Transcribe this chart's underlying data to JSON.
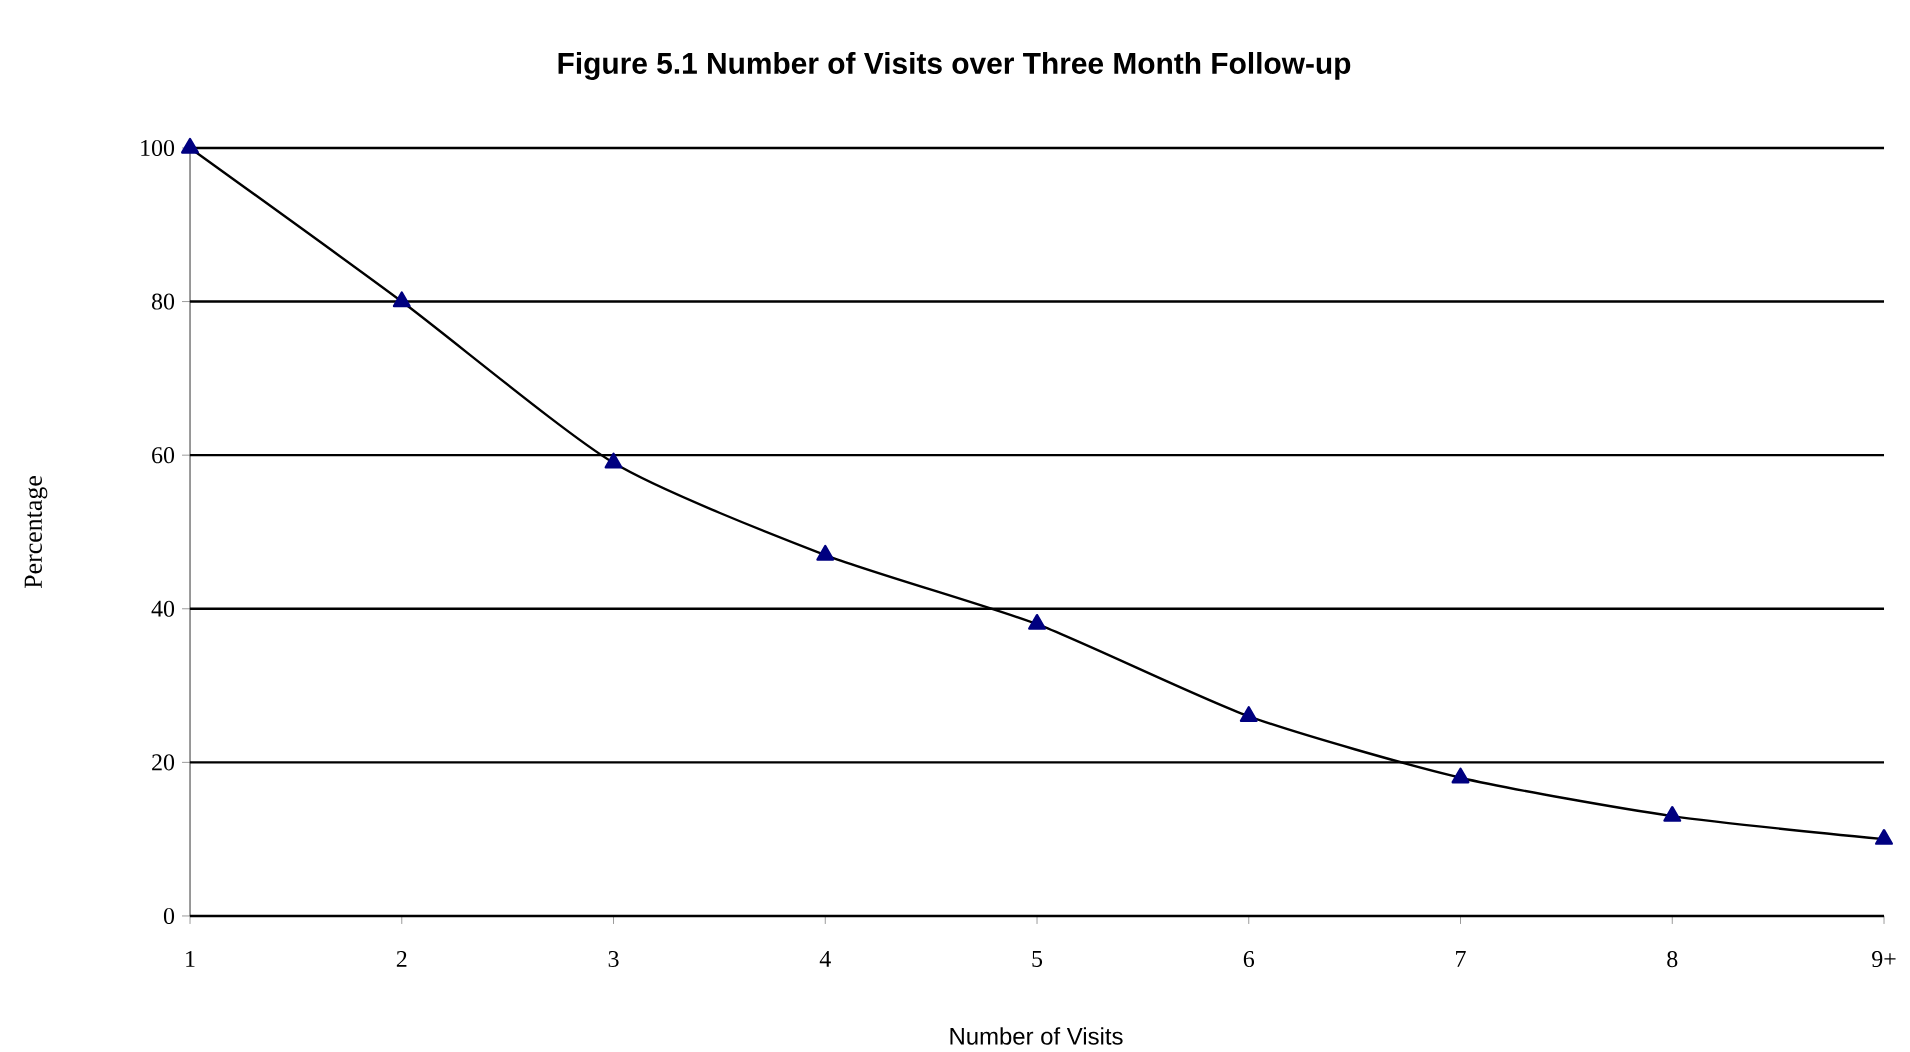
{
  "chart_data": {
    "type": "line",
    "title": "Figure 5.1 Number of Visits over Three Month Follow-up",
    "xlabel": "Number of Visits",
    "ylabel": "Percentage",
    "categories": [
      "1",
      "2",
      "3",
      "4",
      "5",
      "6",
      "7",
      "8",
      "9+"
    ],
    "series": [
      {
        "color": "#000080",
        "values": [
          100,
          80,
          59,
          47,
          38,
          26,
          18,
          13,
          10
        ]
      }
    ],
    "ylim": [
      0,
      100
    ],
    "yticks": [
      0,
      20,
      40,
      60,
      80,
      100
    ],
    "grid": "y",
    "marker": "triangle",
    "line_style": "solid"
  }
}
